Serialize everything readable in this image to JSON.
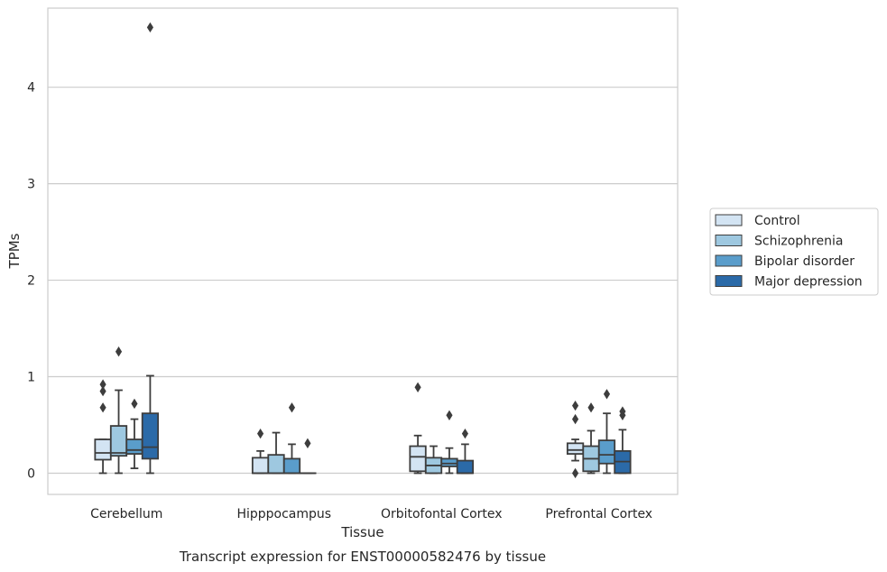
{
  "chart_data": {
    "type": "box",
    "title": "Transcript expression for ENST00000582476 by tissue",
    "xlabel": "Tissue",
    "ylabel": "TPMs",
    "ylim": [
      -0.22,
      4.82
    ],
    "yticks": [
      0,
      1,
      2,
      3,
      4
    ],
    "grid": "horizontal",
    "legend_position": "right",
    "categories": [
      "Cerebellum",
      "Hipppocampus",
      "Orbitofontal Cortex",
      "Prefrontal Cortex"
    ],
    "series": [
      {
        "name": "Control",
        "color": "#d3e4f3",
        "boxes": [
          {
            "whisker_low": 0.0,
            "q1": 0.14,
            "median": 0.21,
            "q3": 0.35,
            "whisker_high": 0.35,
            "outliers": [
              0.68,
              0.85,
              0.92
            ]
          },
          {
            "whisker_low": 0.0,
            "q1": 0.0,
            "median": 0.0,
            "q3": 0.16,
            "whisker_high": 0.23,
            "outliers": [
              0.41
            ]
          },
          {
            "whisker_low": 0.0,
            "q1": 0.02,
            "median": 0.17,
            "q3": 0.28,
            "whisker_high": 0.39,
            "outliers": [
              0.89
            ]
          },
          {
            "whisker_low": 0.13,
            "q1": 0.2,
            "median": 0.24,
            "q3": 0.31,
            "whisker_high": 0.35,
            "outliers": [
              0.0,
              0.56,
              0.7
            ]
          }
        ]
      },
      {
        "name": "Schizophrenia",
        "color": "#9ec8e0",
        "boxes": [
          {
            "whisker_low": 0.0,
            "q1": 0.18,
            "median": 0.21,
            "q3": 0.49,
            "whisker_high": 0.86,
            "outliers": [
              1.26
            ]
          },
          {
            "whisker_low": 0.0,
            "q1": 0.0,
            "median": 0.0,
            "q3": 0.19,
            "whisker_high": 0.42,
            "outliers": []
          },
          {
            "whisker_low": 0.0,
            "q1": 0.0,
            "median": 0.08,
            "q3": 0.16,
            "whisker_high": 0.28,
            "outliers": []
          },
          {
            "whisker_low": 0.0,
            "q1": 0.02,
            "median": 0.15,
            "q3": 0.28,
            "whisker_high": 0.44,
            "outliers": [
              0.68
            ]
          }
        ]
      },
      {
        "name": "Bipolar disorder",
        "color": "#5a9dcb",
        "boxes": [
          {
            "whisker_low": 0.05,
            "q1": 0.2,
            "median": 0.24,
            "q3": 0.35,
            "whisker_high": 0.56,
            "outliers": [
              0.72
            ]
          },
          {
            "whisker_low": 0.0,
            "q1": 0.0,
            "median": 0.0,
            "q3": 0.15,
            "whisker_high": 0.3,
            "outliers": [
              0.68
            ]
          },
          {
            "whisker_low": 0.0,
            "q1": 0.07,
            "median": 0.1,
            "q3": 0.15,
            "whisker_high": 0.26,
            "outliers": [
              0.6
            ]
          },
          {
            "whisker_low": 0.0,
            "q1": 0.1,
            "median": 0.19,
            "q3": 0.34,
            "whisker_high": 0.62,
            "outliers": [
              0.82
            ]
          }
        ]
      },
      {
        "name": "Major depression",
        "color": "#2b6aa8",
        "boxes": [
          {
            "whisker_low": 0.0,
            "q1": 0.15,
            "median": 0.27,
            "q3": 0.62,
            "whisker_high": 1.01,
            "outliers": [
              4.62
            ]
          },
          {
            "whisker_low": 0.0,
            "q1": 0.0,
            "median": 0.0,
            "q3": 0.0,
            "whisker_high": 0.0,
            "outliers": [
              0.31
            ]
          },
          {
            "whisker_low": 0.0,
            "q1": 0.0,
            "median": 0.0,
            "q3": 0.13,
            "whisker_high": 0.3,
            "outliers": [
              0.41
            ]
          },
          {
            "whisker_low": 0.0,
            "q1": 0.0,
            "median": 0.12,
            "q3": 0.23,
            "whisker_high": 0.45,
            "outliers": [
              0.6,
              0.64
            ]
          }
        ]
      }
    ]
  }
}
